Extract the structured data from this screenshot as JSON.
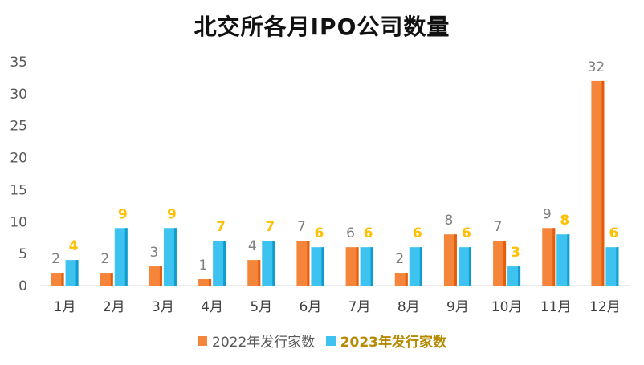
{
  "chart_data": {
    "type": "bar",
    "title": "北交所各月IPO公司数量",
    "categories": [
      "1月",
      "2月",
      "3月",
      "4月",
      "5月",
      "6月",
      "7月",
      "8月",
      "9月",
      "10月",
      "11月",
      "12月"
    ],
    "series": [
      {
        "name": "2022年发行家数",
        "values": [
          2,
          2,
          3,
          1,
          4,
          7,
          6,
          2,
          8,
          7,
          9,
          32
        ]
      },
      {
        "name": "2023年发行家数",
        "values": [
          4,
          9,
          9,
          7,
          7,
          6,
          6,
          6,
          6,
          3,
          8,
          6
        ]
      }
    ],
    "ylim": [
      0,
      35
    ],
    "yticks": [
      "0",
      "5",
      "10",
      "15",
      "20",
      "25",
      "30",
      "35"
    ],
    "xlabel": "",
    "ylabel": "",
    "grid": false,
    "legend_position": "bottom",
    "colors": {
      "series_a": "#f4853a",
      "series_a_dark": "#e35e0b",
      "series_b": "#3ec3f0",
      "series_b_dark": "#109ccd",
      "label_a": "#7f7f7f",
      "label_b": "#ffc000"
    }
  }
}
